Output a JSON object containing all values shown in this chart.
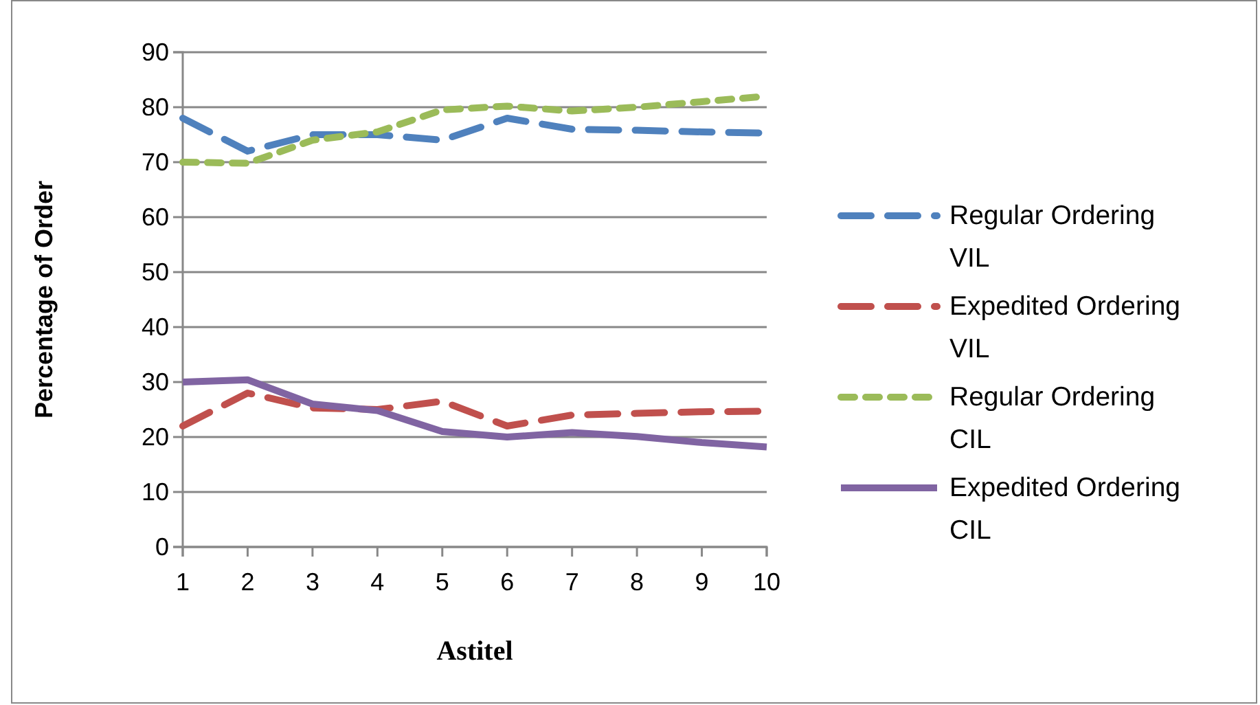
{
  "chart_data": {
    "type": "line",
    "xlabel": "Astitel",
    "ylabel": "Percentage of Order",
    "x": [
      1,
      2,
      3,
      4,
      5,
      6,
      7,
      8,
      9,
      10
    ],
    "xlim": [
      1,
      10
    ],
    "xticks": [
      1,
      2,
      3,
      4,
      5,
      6,
      7,
      8,
      9,
      10
    ],
    "ylim": [
      0,
      90
    ],
    "yticks": [
      0,
      10,
      20,
      30,
      40,
      50,
      60,
      70,
      80,
      90
    ],
    "grid": "y",
    "legend": "right",
    "marker": "none",
    "series": [
      {
        "name": "Regular Ordering VIL",
        "color": "#4f81bd",
        "line_style": "dashed",
        "values": [
          78,
          72,
          75,
          75,
          74,
          78,
          76,
          75.8,
          75.5,
          75.3
        ]
      },
      {
        "name": "Expedited Ordering VIL",
        "color": "#c0504d",
        "line_style": "dashed",
        "values": [
          22,
          28,
          25.3,
          25,
          26.5,
          22,
          24,
          24.3,
          24.6,
          24.7
        ]
      },
      {
        "name": "Regular Ordering CIL",
        "color": "#9bbb59",
        "line_style": "dotted",
        "values": [
          70,
          69.8,
          74,
          75.5,
          79.5,
          80.2,
          79.3,
          80,
          81,
          82
        ]
      },
      {
        "name": "Expedited Ordering CIL",
        "color": "#8064a2",
        "line_style": "solid",
        "values": [
          30,
          30.4,
          26,
          24.8,
          21,
          20,
          20.8,
          20.1,
          19,
          18.2
        ]
      }
    ]
  }
}
